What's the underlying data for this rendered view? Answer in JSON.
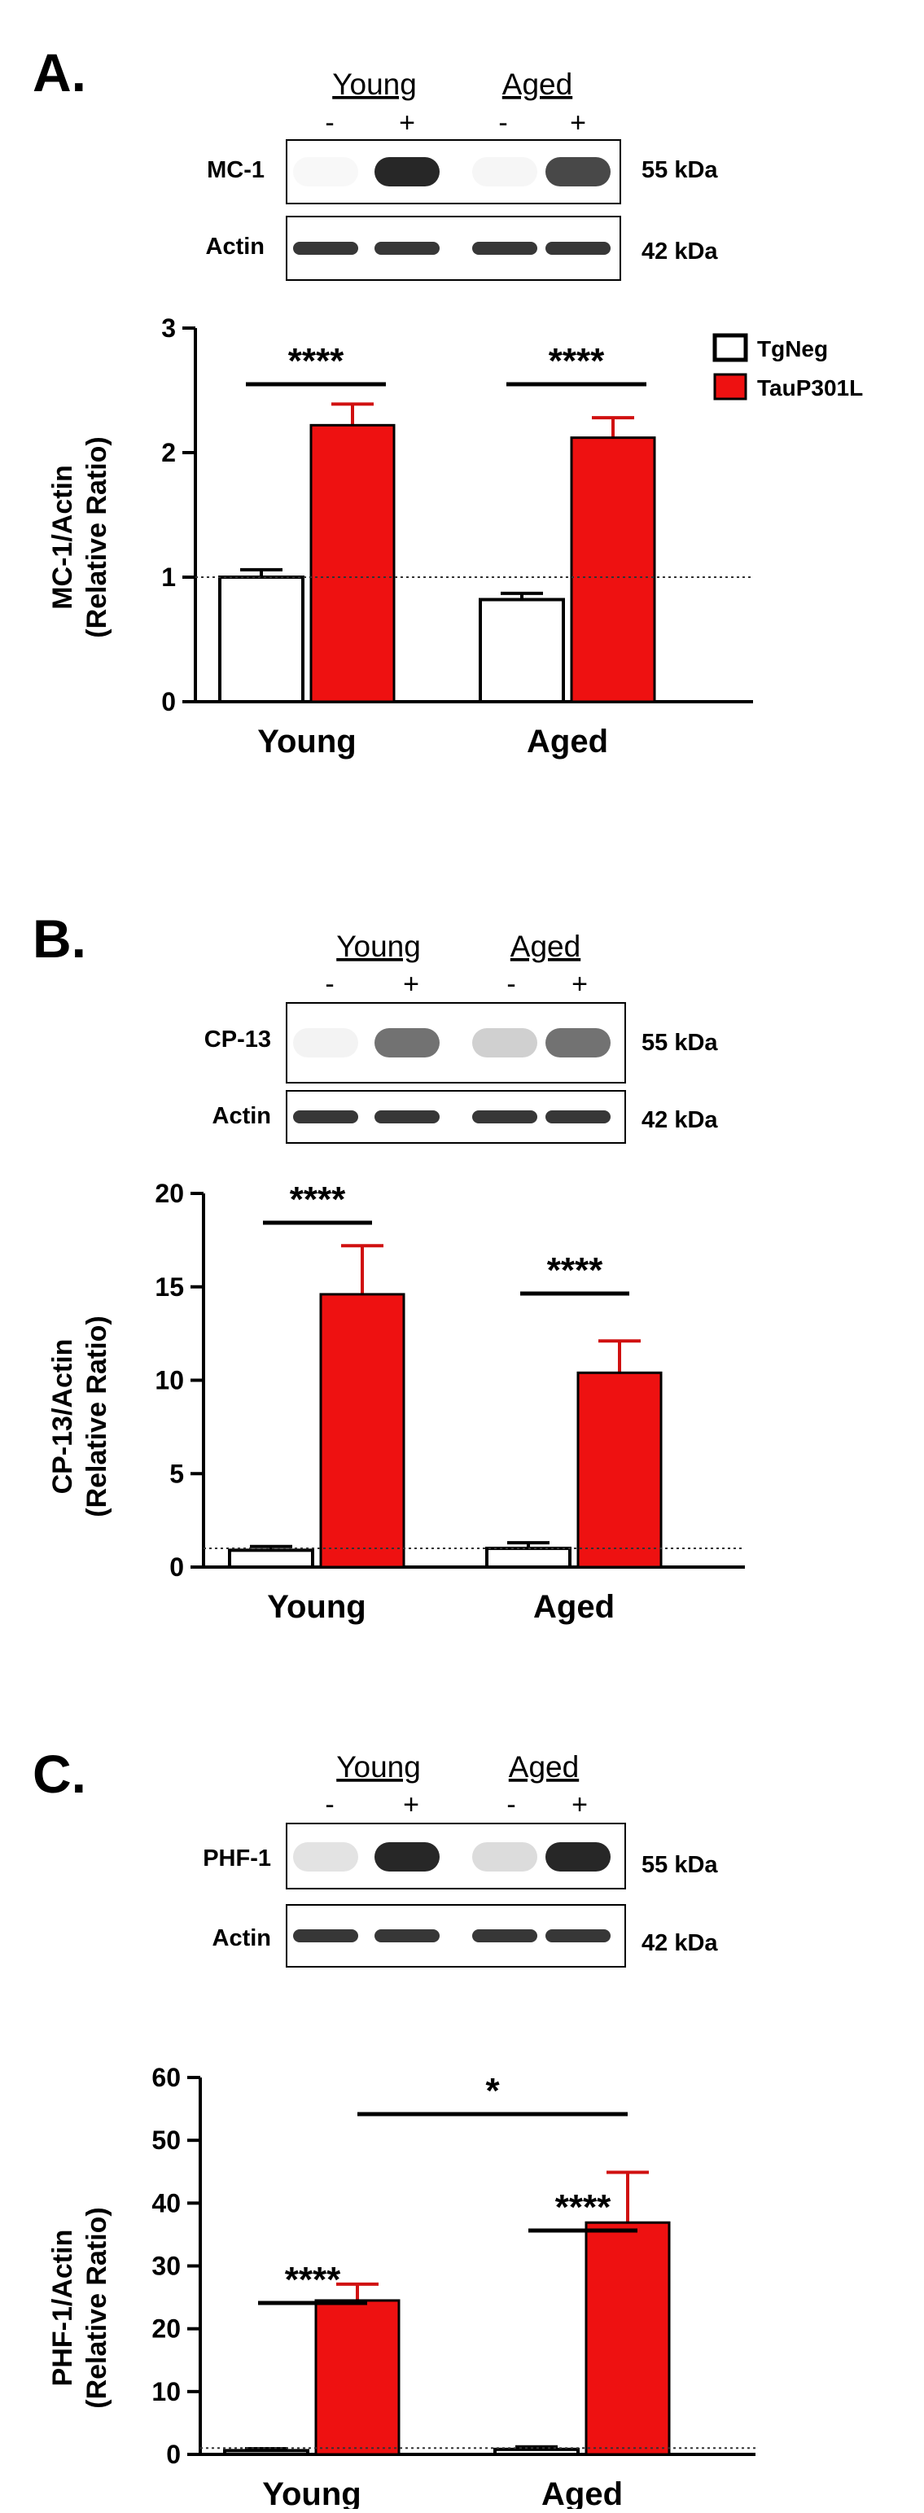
{
  "legend": [
    {
      "name": "TgNeg",
      "color": "#ffffff"
    },
    {
      "name": "TauP301L",
      "color": "#ee1111"
    }
  ],
  "panels": [
    {
      "label": "A.",
      "blot": {
        "groups": [
          "Young",
          "Aged"
        ],
        "lanes": [
          "-",
          "+",
          "-",
          "+"
        ],
        "rows": [
          {
            "label": "MC-1",
            "kda": "55 kDa",
            "intensity": [
              0.03,
              0.92,
              0.04,
              0.78
            ]
          },
          {
            "label": "Actin",
            "kda": "42 kDa",
            "intensity": [
              0.85,
              0.85,
              0.85,
              0.85
            ]
          }
        ]
      },
      "ylabel_line1": "MC-1/Actin",
      "ylabel_line2": "(Relative Ratio)",
      "yticks": [
        "0",
        "1",
        "2",
        "3"
      ],
      "significance": [
        "****",
        "****"
      ]
    },
    {
      "label": "B.",
      "blot": {
        "groups": [
          "Young",
          "Aged"
        ],
        "lanes": [
          "-",
          "+",
          "-",
          "+"
        ],
        "rows": [
          {
            "label": "CP-13",
            "kda": "55 kDa",
            "intensity": [
              0.05,
              0.6,
              0.2,
              0.6
            ]
          },
          {
            "label": "Actin",
            "kda": "42 kDa",
            "intensity": [
              0.85,
              0.85,
              0.85,
              0.85
            ]
          }
        ]
      },
      "ylabel_line1": "CP-13/Actin",
      "ylabel_line2": "(Relative Ratio)",
      "yticks": [
        "0",
        "5",
        "10",
        "15",
        "20"
      ],
      "significance": [
        "****",
        "****"
      ]
    },
    {
      "label": "C.",
      "blot": {
        "groups": [
          "Young",
          "Aged"
        ],
        "lanes": [
          "-",
          "+",
          "-",
          "+"
        ],
        "rows": [
          {
            "label": "PHF-1",
            "kda": "55 kDa",
            "intensity": [
              0.12,
              0.92,
              0.15,
              0.92
            ]
          },
          {
            "label": "Actin",
            "kda": "42 kDa",
            "intensity": [
              0.85,
              0.85,
              0.85,
              0.85
            ]
          }
        ]
      },
      "ylabel_line1": "PHF-1/Actin",
      "ylabel_line2": "(Relative Ratio)",
      "yticks": [
        "0",
        "10",
        "20",
        "30",
        "40",
        "50",
        "60"
      ],
      "significance": [
        "****",
        "****",
        "*"
      ]
    }
  ],
  "chart_data": [
    {
      "type": "bar",
      "categories": [
        "Young",
        "Aged"
      ],
      "series": [
        {
          "name": "TgNeg",
          "values": [
            1.0,
            0.82
          ],
          "errors": [
            0.06,
            0.05
          ]
        },
        {
          "name": "TauP301L",
          "values": [
            2.22,
            2.12
          ],
          "errors": [
            0.17,
            0.16
          ]
        }
      ],
      "title": "",
      "xlabel": "",
      "ylabel": "MC-1/Actin (Relative Ratio)",
      "ylim": [
        0,
        3
      ],
      "reference_line": 1,
      "significance": [
        {
          "from": "Young TgNeg",
          "to": "Young TauP301L",
          "label": "****"
        },
        {
          "from": "Aged TgNeg",
          "to": "Aged TauP301L",
          "label": "****"
        }
      ],
      "legend_position": "top-right"
    },
    {
      "type": "bar",
      "categories": [
        "Young",
        "Aged"
      ],
      "series": [
        {
          "name": "TgNeg",
          "values": [
            0.9,
            1.0
          ],
          "errors": [
            0.2,
            0.3
          ]
        },
        {
          "name": "TauP301L",
          "values": [
            14.6,
            10.4
          ],
          "errors": [
            2.6,
            1.7
          ]
        }
      ],
      "title": "",
      "xlabel": "",
      "ylabel": "CP-13/Actin (Relative Ratio)",
      "ylim": [
        0,
        20
      ],
      "reference_line": 1,
      "significance": [
        {
          "from": "Young TgNeg",
          "to": "Young TauP301L",
          "label": "****"
        },
        {
          "from": "Aged TgNeg",
          "to": "Aged TauP301L",
          "label": "****"
        }
      ]
    },
    {
      "type": "bar",
      "categories": [
        "Young",
        "Aged"
      ],
      "series": [
        {
          "name": "TgNeg",
          "values": [
            0.6,
            0.8
          ],
          "errors": [
            0.3,
            0.4
          ]
        },
        {
          "name": "TauP301L",
          "values": [
            24.5,
            36.9
          ],
          "errors": [
            2.6,
            8.0
          ]
        }
      ],
      "title": "",
      "xlabel": "",
      "ylabel": "PHF-1/Actin (Relative Ratio)",
      "ylim": [
        0,
        60
      ],
      "reference_line": 1,
      "significance": [
        {
          "from": "Young TgNeg",
          "to": "Young TauP301L",
          "label": "****"
        },
        {
          "from": "Aged TgNeg",
          "to": "Aged TauP301L",
          "label": "****"
        },
        {
          "from": "Young TauP301L",
          "to": "Aged TauP301L",
          "label": "*"
        }
      ]
    }
  ]
}
